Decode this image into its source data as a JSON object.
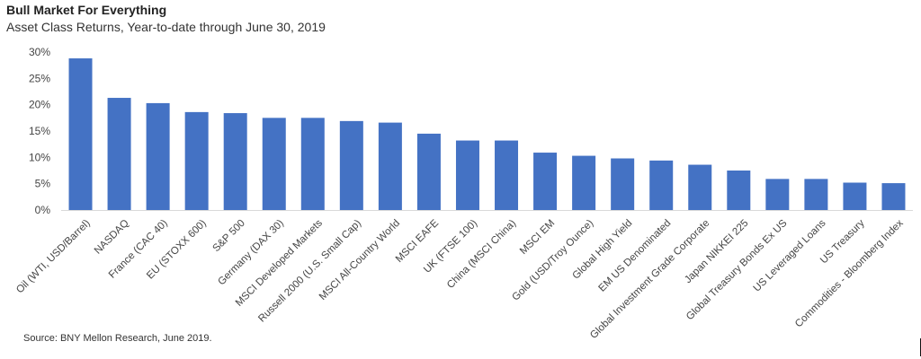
{
  "chart_data": {
    "type": "bar",
    "title": "Bull Market For Everything",
    "subtitle": "Asset Class Returns, Year-to-date through June 30, 2019",
    "xlabel": "",
    "ylabel": "",
    "ylim": [
      0,
      30
    ],
    "yticks": [
      "0%",
      "5%",
      "10%",
      "15%",
      "20%",
      "25%",
      "30%"
    ],
    "grid": false,
    "bar_color": "#4472C4",
    "categories": [
      "Oil (WTI, USD/Barrel)",
      "NASDAQ",
      "France (CAC 40)",
      "EU (STOXX 600)",
      "S&P 500",
      "Germany (DAX 30)",
      "MSCI Developed Markets",
      "Russell 2000 (U.S. Small Cap)",
      "MSCI All-Country World",
      "MSCI EAFE",
      "UK (FTSE 100)",
      "China (MSCI China)",
      "MSCI EM",
      "Gold (USD/Troy Ounce)",
      "Global High Yield",
      "EM US Denominated",
      "Global Investment Grade Corporate",
      "Japan NIKKEI 225",
      "Global Treasury Bonds Ex US",
      "US Leveraged Loans",
      "US Treasury",
      "Commodities - Bloomberg Index"
    ],
    "values": [
      28.8,
      21.3,
      20.3,
      18.6,
      18.4,
      17.5,
      17.5,
      16.9,
      16.6,
      14.5,
      13.2,
      13.2,
      10.9,
      10.3,
      9.8,
      9.4,
      8.6,
      7.5,
      5.9,
      5.9,
      5.2,
      5.1
    ]
  },
  "source": "Source: BNY Mellon Research, June 2019."
}
